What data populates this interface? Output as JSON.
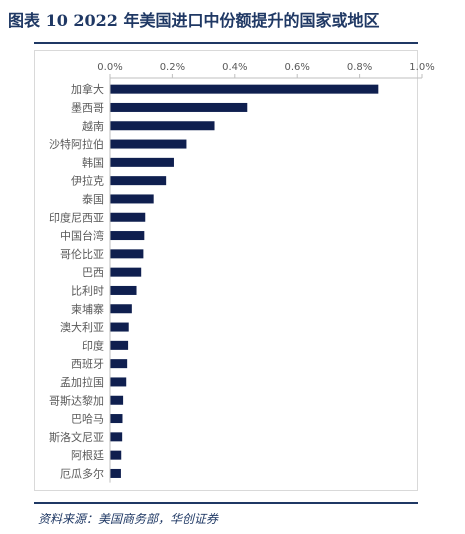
{
  "title": "图表 10    2022 年美国进口中份额提升的国家或地区",
  "source": "资料来源：美国商务部，华创证券",
  "colors": {
    "bar": "#0f1f4f",
    "accent": "#1f3864",
    "tick": "#595959",
    "grid": "#bfbfbf"
  },
  "chart_data": {
    "type": "bar",
    "orientation": "horizontal",
    "title": "",
    "xlabel": "",
    "ylabel": "",
    "xlim": [
      0,
      1.0
    ],
    "x_ticks": [
      "0.0%",
      "0.2%",
      "0.4%",
      "0.6%",
      "0.8%",
      "1.0%"
    ],
    "tick_positions": [
      0,
      0.2,
      0.4,
      0.6,
      0.8,
      1.0
    ],
    "axis_position": "top",
    "grid": false,
    "legend": "none",
    "unit": "%",
    "categories": [
      "加拿大",
      "墨西哥",
      "越南",
      "沙特阿拉伯",
      "韩国",
      "伊拉克",
      "泰国",
      "印度尼西亚",
      "中国台湾",
      "哥伦比亚",
      "巴西",
      "比利时",
      "柬埔寨",
      "澳大利亚",
      "印度",
      "西班牙",
      "孟加拉国",
      "哥斯达黎加",
      "巴哈马",
      "斯洛文尼亚",
      "阿根廷",
      "厄瓜多尔"
    ],
    "values": [
      0.86,
      0.44,
      0.335,
      0.245,
      0.205,
      0.18,
      0.14,
      0.113,
      0.11,
      0.107,
      0.1,
      0.085,
      0.07,
      0.06,
      0.058,
      0.055,
      0.052,
      0.042,
      0.04,
      0.039,
      0.036,
      0.035
    ]
  }
}
